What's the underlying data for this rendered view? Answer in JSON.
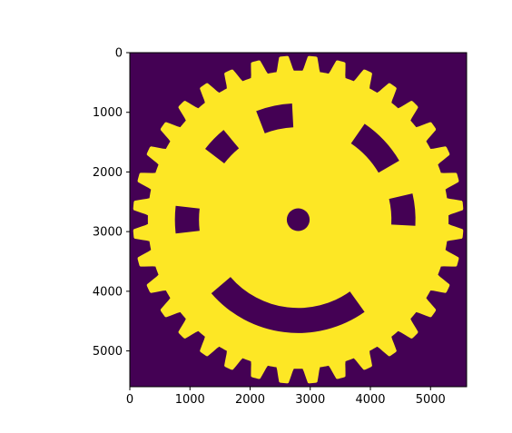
{
  "chart_data": {
    "type": "heatmap",
    "title": "",
    "xlabel": "",
    "ylabel": "",
    "xlim": [
      0,
      5600
    ],
    "ylim": [
      5600,
      0
    ],
    "x_ticks": [
      0,
      1000,
      2000,
      3000,
      4000,
      5000
    ],
    "y_ticks": [
      0,
      1000,
      2000,
      3000,
      4000,
      5000
    ],
    "colormap": "viridis",
    "colors": {
      "background": "#440154",
      "foreground": "#fde725"
    },
    "grid": false,
    "image_description": "binary gear mask",
    "gear": {
      "center": [
        2800,
        2800
      ],
      "root_radius": 2500,
      "tip_radius": 2750,
      "teeth": 36,
      "hole_radius": 190
    },
    "slots": [
      {
        "name": "upper-left-slot",
        "center_angle_deg": 224,
        "span_deg": 13,
        "inner_r": 1550,
        "outer_r": 1950
      },
      {
        "name": "top-slot",
        "center_angle_deg": 258,
        "span_deg": 18,
        "inner_r": 1550,
        "outer_r": 1950
      },
      {
        "name": "upper-right-slot",
        "center_angle_deg": 317,
        "span_deg": 25,
        "inner_r": 1550,
        "outer_r": 1950
      },
      {
        "name": "right-slot",
        "center_angle_deg": 355,
        "span_deg": 16,
        "inner_r": 1550,
        "outer_r": 1950
      },
      {
        "name": "left-slot",
        "center_angle_deg": 180,
        "span_deg": 13,
        "inner_r": 1650,
        "outer_r": 2050
      },
      {
        "name": "smile-slot",
        "center_angle_deg": 97,
        "span_deg": 85,
        "inner_r": 1480,
        "outer_r": 1900
      }
    ]
  }
}
